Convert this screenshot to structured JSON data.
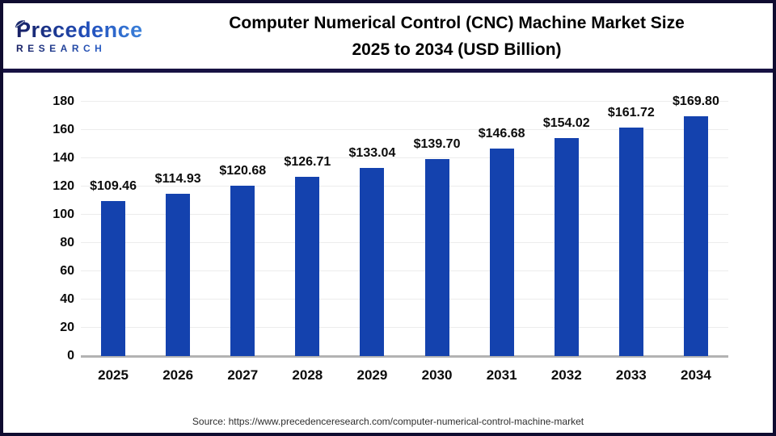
{
  "header": {
    "logo": {
      "brand": "Precedence",
      "sub": "RESEARCH"
    },
    "title_line1": "Computer Numerical Control (CNC) Machine Market Size",
    "title_line2": "2025 to 2034 (USD Billion)"
  },
  "chart_data": {
    "type": "bar",
    "title": "Computer Numerical Control (CNC) Machine Market Size 2025 to 2034 (USD Billion)",
    "categories": [
      "2025",
      "2026",
      "2027",
      "2028",
      "2029",
      "2030",
      "2031",
      "2032",
      "2033",
      "2034"
    ],
    "values": [
      109.46,
      114.93,
      120.68,
      126.71,
      133.04,
      139.7,
      146.68,
      154.02,
      161.72,
      169.8
    ],
    "labels": [
      "$109.46",
      "$114.93",
      "$120.68",
      "$126.71",
      "$133.04",
      "$139.70",
      "$146.68",
      "$154.02",
      "$161.72",
      "$169.80"
    ],
    "xlabel": "",
    "ylabel": "",
    "ylim": [
      0,
      180
    ],
    "yticks": [
      0,
      20,
      40,
      60,
      80,
      100,
      120,
      140,
      160,
      180
    ],
    "grid": true,
    "legend": "none",
    "bar_color": "#1442ae"
  },
  "footer": {
    "source": "Source: https://www.precedenceresearch.com/computer-numerical-control-machine-market"
  },
  "colors": {
    "bar": "#1442ae",
    "frame_border": "#0f0c30",
    "header_separator": "#171243",
    "gridline": "#ececec",
    "axis_line": "#b3b3b3",
    "logo_gradient_start": "#171f63",
    "logo_gradient_end": "#3e87dd"
  }
}
